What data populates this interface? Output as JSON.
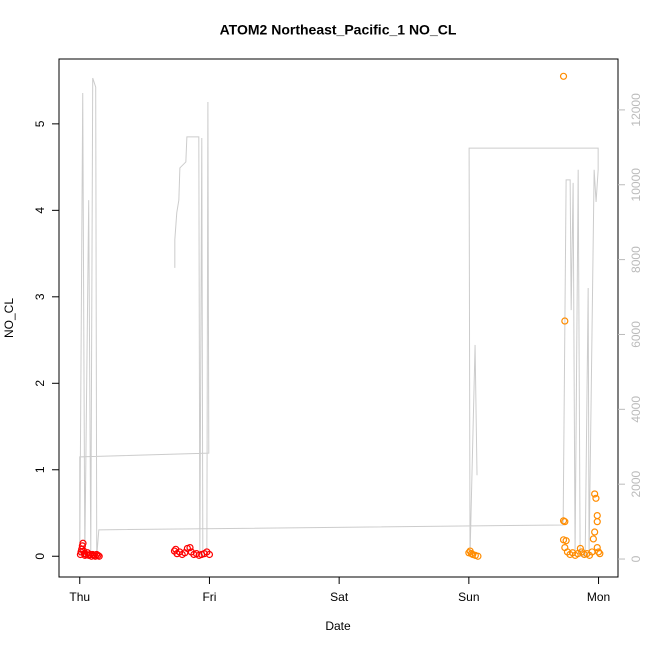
{
  "chart_data": {
    "type": "scatter",
    "title": "ATOM2 Northeast_Pacific_1 NO_CL",
    "xlabel": "Date",
    "ylabel": "NO_CL",
    "xlim": [
      -0.16,
      4.15
    ],
    "ylim": [
      -0.24,
      5.75
    ],
    "y2lim": [
      -480,
      13360
    ],
    "xticks": [
      {
        "value": 0,
        "label": "Thu"
      },
      {
        "value": 1,
        "label": "Fri"
      },
      {
        "value": 2,
        "label": "Sat"
      },
      {
        "value": 3,
        "label": "Sun"
      },
      {
        "value": 4,
        "label": "Mon"
      }
    ],
    "yticks": [
      0,
      1,
      2,
      3,
      4,
      5
    ],
    "y2ticks": [
      0,
      2000,
      4000,
      6000,
      8000,
      10000,
      12000
    ],
    "series": [
      {
        "type": "line",
        "axis": "y2",
        "color": "#cccccc",
        "x": [
          0.733,
          0.733,
          0.748,
          0.764,
          0.772,
          0.818,
          0.826,
          0.918,
          0.926,
          0.941,
          0.949,
          0.98,
          0.988,
          0.995,
          0.0,
          0.0,
          0.023,
          0.039,
          0.069,
          0.085,
          0.1,
          0.123,
          0.131,
          0.147,
          3.727,
          3.75,
          3.781,
          3.789,
          3.804,
          3.819,
          3.843,
          3.858,
          3.897,
          3.92,
          3.927,
          3.966,
          3.981,
          3.997,
          3.997,
          3.002,
          3.009,
          3.048,
          3.063
        ],
        "values": [
          7780,
          8530,
          9250,
          9590,
          10450,
          10610,
          11280,
          11280,
          80,
          11250,
          80,
          80,
          12210,
          2830,
          2730,
          80,
          12450,
          80,
          9590,
          80,
          12850,
          12610,
          80,
          780,
          910,
          10130,
          10130,
          6650,
          10050,
          80,
          10400,
          80,
          80,
          7240,
          80,
          10400,
          9540,
          10400,
          10980,
          10980,
          80,
          5720,
          2240
        ]
      },
      {
        "type": "scatter",
        "color": "#ff0000",
        "x": [
          0.005,
          0.01,
          0.015,
          0.02,
          0.025,
          0.03,
          0.035,
          0.04,
          0.05,
          0.06,
          0.07,
          0.08,
          0.09,
          0.1,
          0.11,
          0.12,
          0.13,
          0.14,
          0.15,
          0.73,
          0.74,
          0.75,
          0.77,
          0.79,
          0.81,
          0.83,
          0.85,
          0.86,
          0.88,
          0.9,
          0.92,
          0.94,
          0.96,
          0.98,
          1.0
        ],
        "values": [
          0.02,
          0.05,
          0.08,
          0.12,
          0.15,
          0.06,
          0.03,
          0.01,
          0.02,
          0.04,
          0.01,
          0.02,
          0.0,
          0.02,
          0.01,
          0.0,
          0.02,
          0.01,
          0.0,
          0.06,
          0.08,
          0.03,
          0.05,
          0.02,
          0.04,
          0.09,
          0.1,
          0.05,
          0.02,
          0.03,
          0.01,
          0.02,
          0.03,
          0.05,
          0.02
        ]
      },
      {
        "type": "scatter",
        "color": "#ff8c00",
        "x": [
          3.0,
          3.01,
          3.02,
          3.03,
          3.05,
          3.07,
          3.73,
          3.74,
          3.73,
          3.74,
          3.73,
          3.75,
          3.74,
          3.76,
          3.78,
          3.8,
          3.82,
          3.84,
          3.86,
          3.87,
          3.89,
          3.91,
          3.93,
          3.95,
          3.96,
          3.97,
          3.97,
          3.98,
          3.99,
          3.99,
          3.99,
          4.0,
          4.01
        ],
        "values": [
          0.04,
          0.06,
          0.03,
          0.02,
          0.01,
          0.0,
          5.55,
          2.72,
          0.41,
          0.4,
          0.19,
          0.18,
          0.1,
          0.05,
          0.02,
          0.04,
          0.01,
          0.03,
          0.09,
          0.05,
          0.02,
          0.03,
          0.01,
          0.05,
          0.2,
          0.28,
          0.72,
          0.67,
          0.47,
          0.4,
          0.1,
          0.05,
          0.03
        ]
      }
    ]
  }
}
